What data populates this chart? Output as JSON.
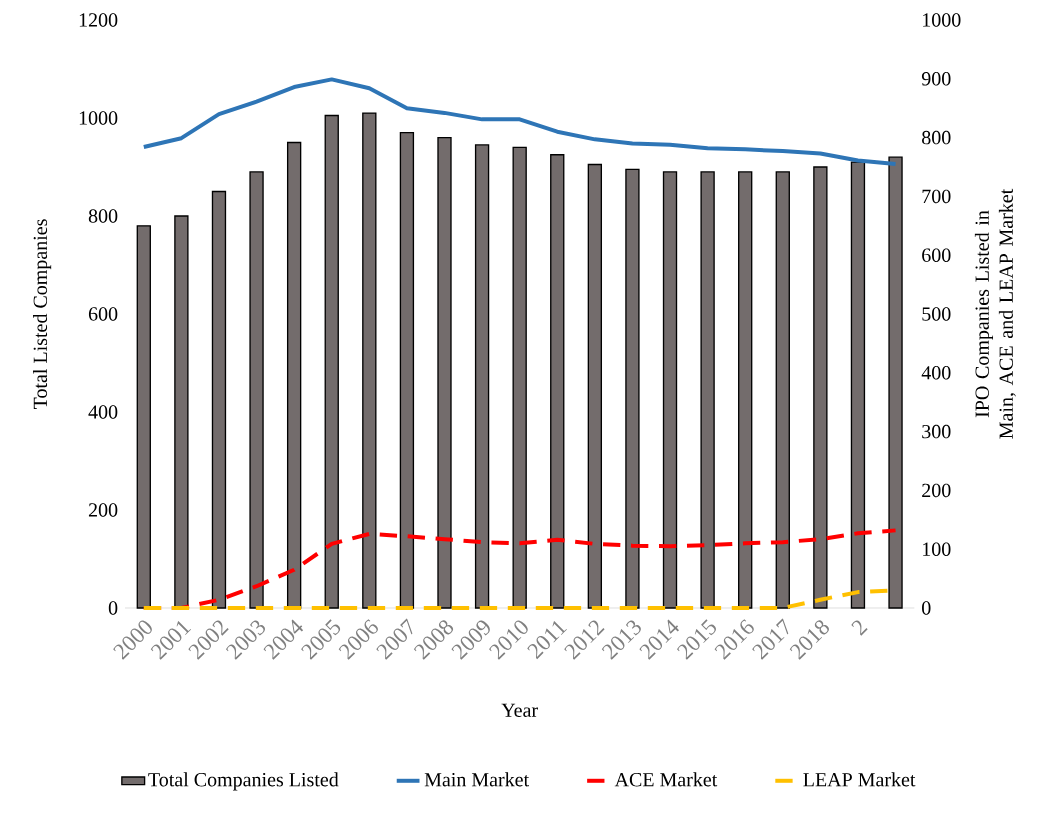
{
  "chart_data": {
    "type": "bar",
    "xlabel": "Year",
    "ylabel": "Total Listed Companies",
    "y2label": "IPO Companies Listed in Main, ACE and LEAP Market",
    "categories": [
      "2000",
      "2001",
      "2002",
      "2003",
      "2004",
      "2005",
      "2006",
      "2007",
      "2008",
      "2009",
      "2010",
      "2011",
      "2012",
      "2013",
      "2014",
      "2015",
      "2016",
      "2017",
      "2018",
      "2",
      null
    ],
    "series": [
      {
        "name": "Total Companies Listed",
        "color": "#736c6c",
        "values": [
          780,
          800,
          850,
          890,
          950,
          1005,
          1010,
          970,
          960,
          945,
          940,
          925,
          905,
          895,
          890,
          890,
          890,
          890,
          900,
          910,
          920
        ]
      },
      {
        "name": "Main Market",
        "type": "line",
        "axis": "y2",
        "color": "#2e75b6",
        "values": [
          784,
          799,
          840,
          861,
          886,
          899,
          884,
          850,
          842,
          831,
          831,
          810,
          797,
          790,
          788,
          782,
          780,
          777,
          773,
          761,
          755
        ]
      },
      {
        "name": "ACE Market",
        "type": "line",
        "axis": "y2",
        "color": "#ff0000",
        "line_style": "dashed",
        "values": [
          0,
          0,
          14,
          37,
          65,
          109,
          126,
          122,
          117,
          112,
          110,
          116,
          109,
          106,
          105,
          107,
          110,
          112,
          117,
          127,
          132
        ]
      },
      {
        "name": "LEAP Market",
        "type": "line",
        "axis": "y2",
        "color": "#ffc000",
        "line_style": "dashed",
        "values": [
          0,
          0,
          0,
          0,
          0,
          0,
          0,
          0,
          0,
          0,
          0,
          0,
          0,
          0,
          0,
          0,
          0,
          0,
          14,
          27,
          30
        ]
      }
    ],
    "ylim": [
      0,
      1200
    ],
    "yticks": [
      0,
      200,
      400,
      600,
      800,
      1000,
      1200
    ],
    "y2lim": [
      0,
      1000
    ],
    "y2ticks": [
      0,
      100,
      200,
      300,
      400,
      500,
      600,
      700,
      800,
      900,
      1000
    ],
    "legend": "bottom"
  }
}
